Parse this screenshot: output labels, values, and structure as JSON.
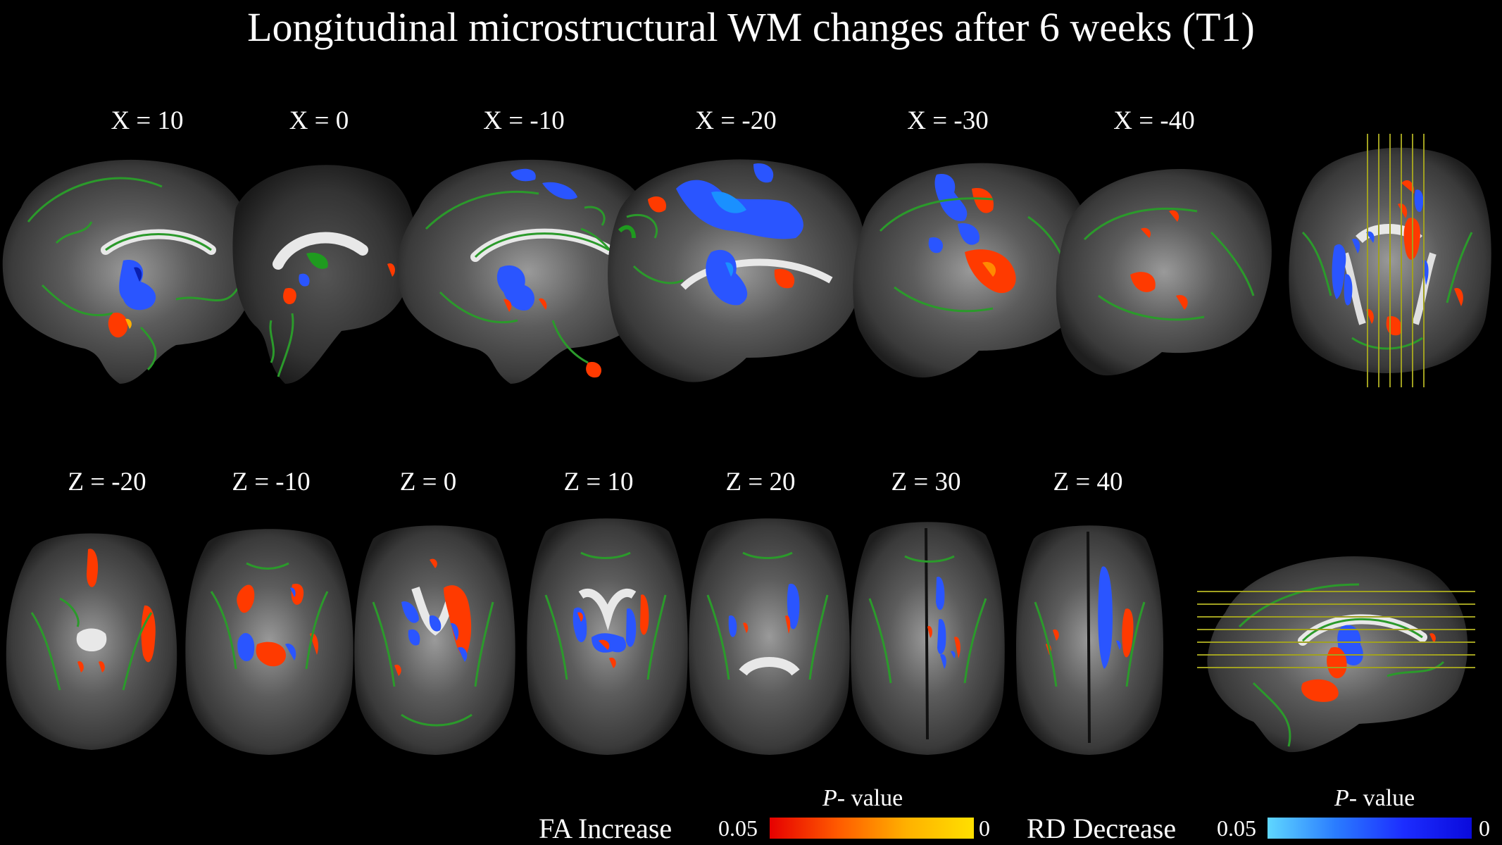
{
  "title": "Longitudinal microstructural WM changes after 6 weeks (T1)",
  "sagittal_labels": [
    "X = 10",
    "X = 0",
    "X = -10",
    "X = -20",
    "X = -30",
    "X = -40"
  ],
  "axial_labels": [
    "Z = -20",
    "Z = -10",
    "Z = 0",
    "Z = 10",
    "Z = 20",
    "Z = 30",
    "Z = 40"
  ],
  "legend": {
    "fa": {
      "label": "FA  Increase",
      "min": "0.05",
      "max": "0",
      "pvalue_prefix": "P",
      "pvalue_suffix": "- value"
    },
    "rd": {
      "label": "RD Decrease",
      "min": "0.05",
      "max": "0",
      "pvalue_prefix": "P",
      "pvalue_suffix": "- value"
    }
  },
  "colors": {
    "background": "#000000",
    "skeleton": "#1f9a1f",
    "fa_increase": "#ff3a00",
    "rd_decrease": "#2a55ff",
    "guide_lines": "#a0a020"
  }
}
